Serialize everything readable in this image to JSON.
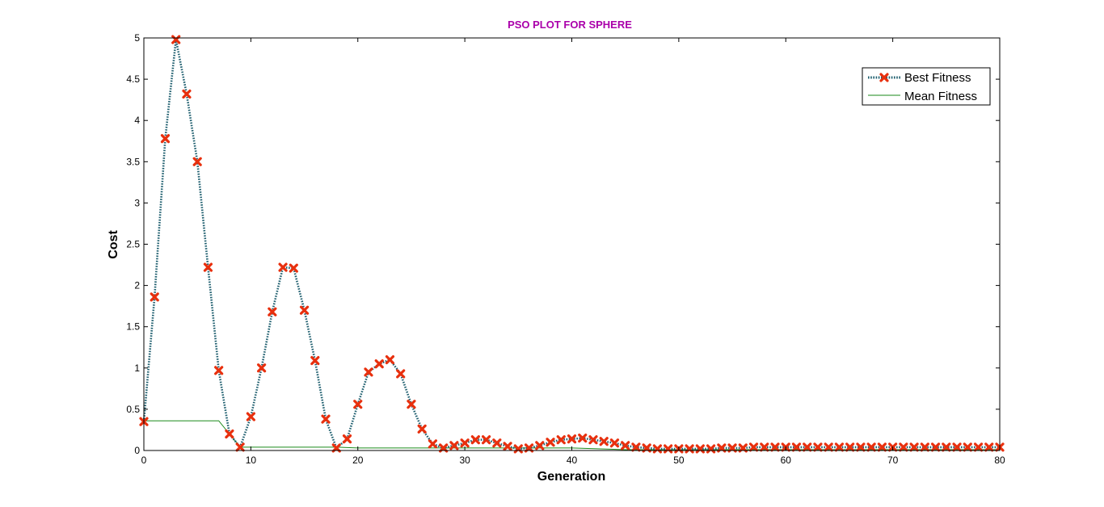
{
  "chart_data": {
    "type": "line",
    "title": "PSO PLOT FOR SPHERE",
    "title_color": "#aa00aa",
    "xlabel": "Generation",
    "ylabel": "Cost",
    "xlim": [
      0,
      80
    ],
    "ylim": [
      0,
      5
    ],
    "xticks": [
      0,
      10,
      20,
      30,
      40,
      50,
      60,
      70,
      80
    ],
    "yticks": [
      0,
      0.5,
      1,
      1.5,
      2,
      2.5,
      3,
      3.5,
      4,
      4.5,
      5
    ],
    "grid": false,
    "legend_position": "top-right",
    "series": [
      {
        "name": "Best Fitness",
        "line_color": "#1f5f6f",
        "line_style": "dotted",
        "marker": "x",
        "marker_color": "#e8300e",
        "x": [
          0,
          1,
          2,
          3,
          4,
          5,
          6,
          7,
          8,
          9,
          10,
          11,
          12,
          13,
          14,
          15,
          16,
          17,
          18,
          19,
          20,
          21,
          22,
          23,
          24,
          25,
          26,
          27,
          28,
          29,
          30,
          31,
          32,
          33,
          34,
          35,
          36,
          37,
          38,
          39,
          40,
          41,
          42,
          43,
          44,
          45,
          46,
          47,
          48,
          49,
          50,
          51,
          52,
          53,
          54,
          55,
          56,
          57,
          58,
          59,
          60,
          61,
          62,
          63,
          64,
          65,
          66,
          67,
          68,
          69,
          70,
          71,
          72,
          73,
          74,
          75,
          76,
          77,
          78,
          79,
          80
        ],
        "values": [
          0.35,
          1.86,
          3.78,
          4.98,
          4.32,
          3.5,
          2.22,
          0.97,
          0.2,
          0.04,
          0.41,
          1.0,
          1.68,
          2.22,
          2.21,
          1.7,
          1.09,
          0.38,
          0.03,
          0.14,
          0.56,
          0.95,
          1.05,
          1.1,
          0.93,
          0.56,
          0.26,
          0.08,
          0.03,
          0.06,
          0.09,
          0.13,
          0.13,
          0.09,
          0.05,
          0.02,
          0.03,
          0.06,
          0.1,
          0.13,
          0.14,
          0.15,
          0.13,
          0.11,
          0.09,
          0.06,
          0.04,
          0.03,
          0.02,
          0.02,
          0.02,
          0.02,
          0.02,
          0.02,
          0.03,
          0.03,
          0.03,
          0.04,
          0.04,
          0.04,
          0.04,
          0.04,
          0.04,
          0.04,
          0.04,
          0.04,
          0.04,
          0.04,
          0.04,
          0.04,
          0.04,
          0.04,
          0.04,
          0.04,
          0.04,
          0.04,
          0.04,
          0.04,
          0.04,
          0.04,
          0.04
        ]
      },
      {
        "name": "Mean Fitness",
        "line_color": "#1a8a1a",
        "line_style": "solid",
        "x": [
          0,
          7,
          9,
          10,
          18,
          20,
          40,
          45,
          80
        ],
        "values": [
          0.36,
          0.36,
          0.04,
          0.04,
          0.04,
          0.03,
          0.03,
          0.01,
          0.01
        ]
      }
    ]
  }
}
